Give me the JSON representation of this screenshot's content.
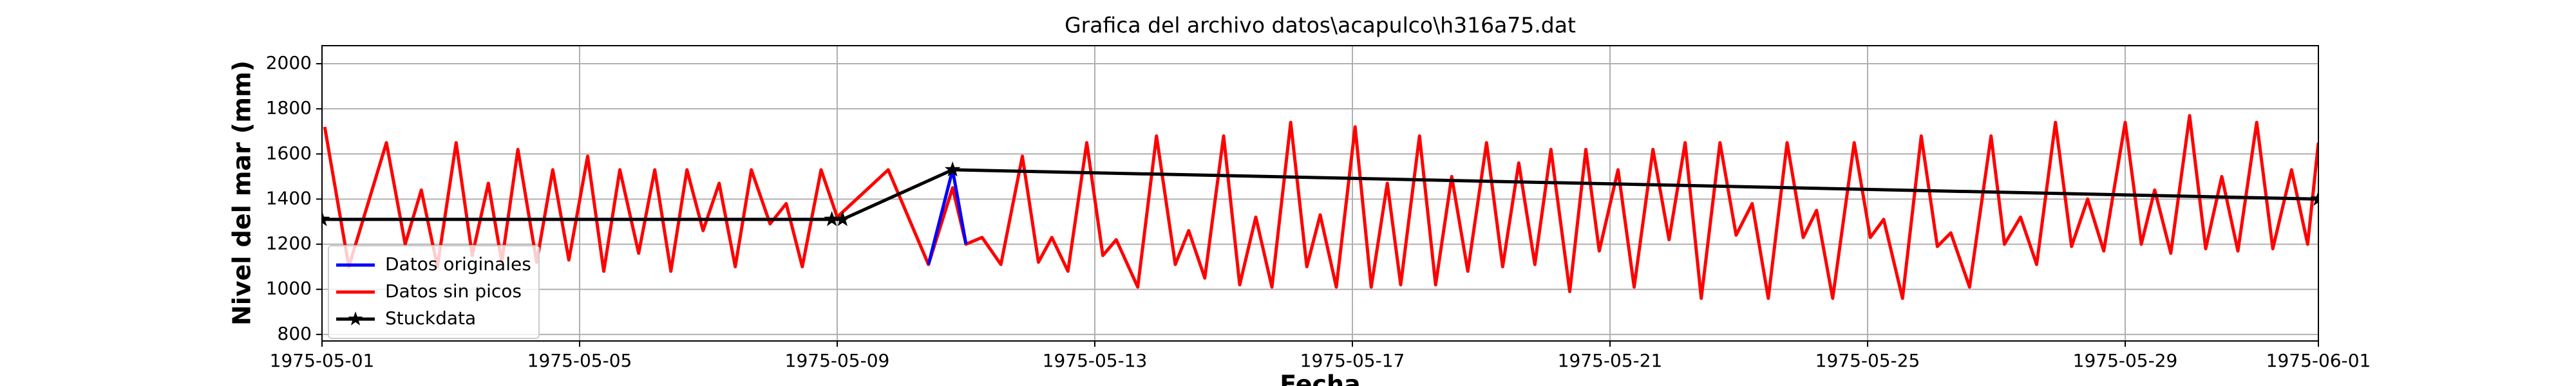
{
  "chart_data": {
    "type": "line",
    "title": "Grafica del archivo datos\\acapulco\\h316a75.dat",
    "xlabel": "Fecha",
    "ylabel": "Nivel del mar (mm)",
    "xlim": [
      "1975-05-01",
      "1975-06-01"
    ],
    "xticks": [
      "1975-05-01",
      "1975-05-05",
      "1975-05-09",
      "1975-05-13",
      "1975-05-17",
      "1975-05-21",
      "1975-05-25",
      "1975-05-29",
      "1975-06-01"
    ],
    "ylim": [
      771,
      2080
    ],
    "yticks": [
      800,
      1000,
      1200,
      1400,
      1600,
      1800,
      2000
    ],
    "grid": true,
    "legend": "lower left",
    "series": [
      {
        "name": "Datos originales",
        "color": "#0000ff",
        "x": [
          "1975-05-10 10:00",
          "1975-05-10 19:00",
          "1975-05-11 00:00"
        ],
        "values": [
          1110,
          1530,
          1200
        ]
      },
      {
        "name": "Datos sin picos",
        "color": "#ff0000",
        "x": [
          "1975-05-01 01:00",
          "1975-05-01 10:00",
          "1975-05-02 00:00",
          "1975-05-02 07:00",
          "1975-05-02 13:00",
          "1975-05-02 19:00",
          "1975-05-03 02:00",
          "1975-05-03 08:00",
          "1975-05-03 14:00",
          "1975-05-03 19:00",
          "1975-05-04 01:00",
          "1975-05-04 08:00",
          "1975-05-04 14:00",
          "1975-05-04 20:00",
          "1975-05-05 03:00",
          "1975-05-05 09:00",
          "1975-05-05 15:00",
          "1975-05-05 22:00",
          "1975-05-06 04:00",
          "1975-05-06 10:00",
          "1975-05-06 16:00",
          "1975-05-06 22:00",
          "1975-05-07 04:00",
          "1975-05-07 10:00",
          "1975-05-07 16:00",
          "1975-05-07 23:00",
          "1975-05-08 05:00",
          "1975-05-08 11:00",
          "1975-05-08 18:00",
          "1975-05-09 00:00",
          "1975-05-09 19:00",
          "1975-05-10 10:00",
          "1975-05-10 19:00",
          "1975-05-11 00:00",
          "1975-05-11 06:00",
          "1975-05-11 13:00",
          "1975-05-11 21:00",
          "1975-05-12 03:00",
          "1975-05-12 08:00",
          "1975-05-12 14:00",
          "1975-05-12 21:00",
          "1975-05-13 03:00",
          "1975-05-13 08:00",
          "1975-05-13 16:00",
          "1975-05-13 23:00",
          "1975-05-14 06:00",
          "1975-05-14 11:00",
          "1975-05-14 17:00",
          "1975-05-15 00:00",
          "1975-05-15 06:00",
          "1975-05-15 12:00",
          "1975-05-15 18:00",
          "1975-05-16 01:00",
          "1975-05-16 07:00",
          "1975-05-16 12:00",
          "1975-05-16 18:00",
          "1975-05-17 01:00",
          "1975-05-17 07:00",
          "1975-05-17 13:00",
          "1975-05-17 18:00",
          "1975-05-18 01:00",
          "1975-05-18 07:00",
          "1975-05-18 13:00",
          "1975-05-18 19:00",
          "1975-05-19 02:00",
          "1975-05-19 08:00",
          "1975-05-19 14:00",
          "1975-05-19 20:00",
          "1975-05-20 02:00",
          "1975-05-20 09:00",
          "1975-05-20 15:00",
          "1975-05-20 20:00",
          "1975-05-21 03:00",
          "1975-05-21 09:00",
          "1975-05-21 16:00",
          "1975-05-21 22:00",
          "1975-05-22 04:00",
          "1975-05-22 10:00",
          "1975-05-22 17:00",
          "1975-05-22 23:00",
          "1975-05-23 05:00",
          "1975-05-23 11:00",
          "1975-05-23 18:00",
          "1975-05-24 00:00",
          "1975-05-24 05:00",
          "1975-05-24 11:00",
          "1975-05-24 19:00",
          "1975-05-25 01:00",
          "1975-05-25 06:00",
          "1975-05-25 13:00",
          "1975-05-25 20:00",
          "1975-05-26 02:00",
          "1975-05-26 07:00",
          "1975-05-26 14:00",
          "1975-05-26 22:00",
          "1975-05-27 03:00",
          "1975-05-27 09:00",
          "1975-05-27 15:00",
          "1975-05-27 22:00",
          "1975-05-28 04:00",
          "1975-05-28 10:00",
          "1975-05-28 16:00",
          "1975-05-29 00:00",
          "1975-05-29 06:00",
          "1975-05-29 11:00",
          "1975-05-29 17:00",
          "1975-05-30 00:00",
          "1975-05-30 06:00",
          "1975-05-30 12:00",
          "1975-05-30 18:00",
          "1975-05-31 01:00",
          "1975-05-31 07:00",
          "1975-05-31 14:00",
          "1975-05-31 20:00",
          "1975-06-01 00:00"
        ],
        "values": [
          1720,
          1100,
          1650,
          1200,
          1440,
          1100,
          1650,
          1150,
          1470,
          1120,
          1620,
          1120,
          1530,
          1130,
          1590,
          1080,
          1530,
          1160,
          1530,
          1080,
          1530,
          1260,
          1470,
          1100,
          1530,
          1290,
          1380,
          1100,
          1530,
          1320,
          1530,
          1110,
          1450,
          1200,
          1230,
          1110,
          1590,
          1120,
          1230,
          1080,
          1650,
          1150,
          1220,
          1010,
          1680,
          1110,
          1260,
          1050,
          1680,
          1020,
          1320,
          1010,
          1740,
          1100,
          1330,
          1010,
          1720,
          1010,
          1470,
          1020,
          1680,
          1020,
          1500,
          1080,
          1650,
          1100,
          1560,
          1110,
          1620,
          990,
          1620,
          1170,
          1530,
          1010,
          1620,
          1220,
          1650,
          960,
          1650,
          1240,
          1380,
          960,
          1650,
          1230,
          1350,
          960,
          1650,
          1230,
          1310,
          960,
          1680,
          1190,
          1250,
          1010,
          1680,
          1200,
          1320,
          1110,
          1740,
          1190,
          1400,
          1170,
          1740,
          1200,
          1440,
          1160,
          1770,
          1180,
          1500,
          1170,
          1740,
          1180,
          1530,
          1200,
          1650
        ]
      },
      {
        "name": "Stuckdata",
        "color": "#000000",
        "x": [
          "1975-05-01 00:00",
          "1975-05-08 22:00",
          "1975-05-09 02:00",
          "1975-05-10 19:00",
          "1975-06-01 00:00"
        ],
        "values": [
          1310,
          1310,
          1310,
          1530,
          1400
        ]
      }
    ]
  }
}
